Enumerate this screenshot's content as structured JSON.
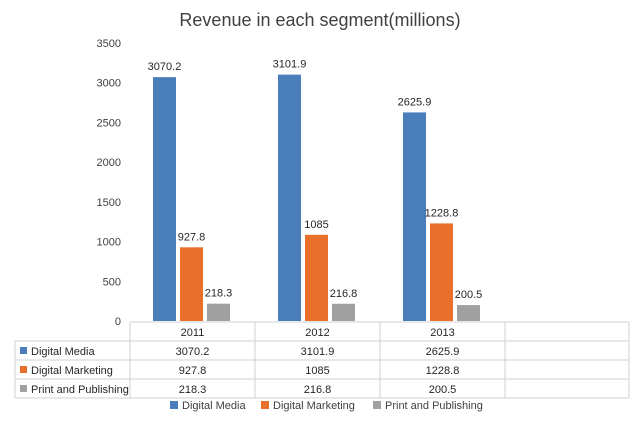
{
  "chart_data": {
    "type": "bar",
    "title": "Revenue in each segment(millions)",
    "categories": [
      "2011",
      "2012",
      "2013"
    ],
    "series": [
      {
        "name": "Digital Media",
        "values": [
          3070.2,
          3101.9,
          2625.9
        ],
        "labels": [
          "3070.2",
          "3101.9",
          "2625.9"
        ],
        "color": "#4a7ebb"
      },
      {
        "name": "Digital Marketing",
        "values": [
          927.8,
          1085,
          1228.8
        ],
        "labels": [
          "927.8",
          "1085",
          "1228.8"
        ],
        "color": "#e8702a"
      },
      {
        "name": "Print and Publishing",
        "values": [
          218.3,
          216.8,
          200.5
        ],
        "labels": [
          "218.3",
          "216.8",
          "200.5"
        ],
        "color": "#a0a0a0"
      }
    ],
    "ylim": [
      0,
      3500
    ],
    "yticks": [
      "0",
      "500",
      "1000",
      "1500",
      "2000",
      "2500",
      "3000",
      "3500"
    ],
    "grid": false,
    "data_table": true,
    "legend_position": "bottom"
  }
}
